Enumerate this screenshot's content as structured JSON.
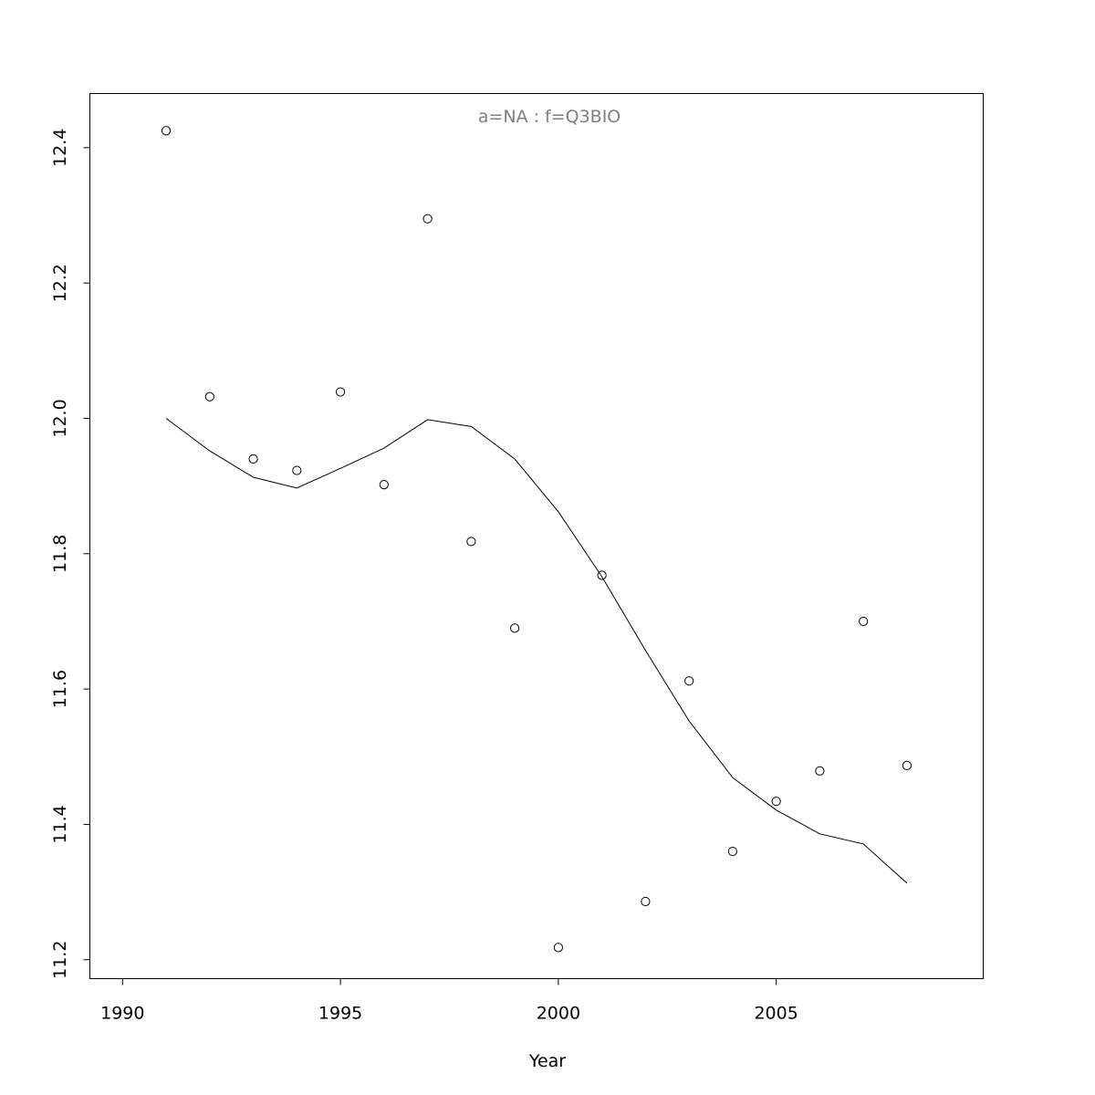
{
  "chart_data": {
    "type": "scatter",
    "title": "a=NA  :  f=Q3BIO",
    "xlabel": "Year",
    "ylabel": "",
    "xlim": [
      1989.25,
      2009.75
    ],
    "ylim": [
      11.172,
      12.48
    ],
    "x_ticks": [
      1990,
      1995,
      2000,
      2005
    ],
    "y_ticks": [
      11.2,
      11.4,
      11.6,
      11.8,
      12.0,
      12.2,
      12.4
    ],
    "x_tick_labels": [
      "1990",
      "1995",
      "2000",
      "2005"
    ],
    "y_tick_labels": [
      "11.2",
      "11.4",
      "11.6",
      "11.8",
      "12.0",
      "12.2",
      "12.4"
    ],
    "grid": false,
    "series": [
      {
        "mode": "points",
        "x": [
          1991,
          1992,
          1993,
          1994,
          1995,
          1996,
          1997,
          1998,
          1999,
          2000,
          2001,
          2002,
          2003,
          2004,
          2005,
          2006,
          2007,
          2008
        ],
        "y": [
          12.425,
          12.032,
          11.94,
          11.923,
          12.039,
          11.902,
          12.295,
          11.818,
          11.69,
          11.218,
          11.768,
          11.286,
          11.612,
          11.36,
          11.434,
          11.479,
          11.7,
          11.487
        ]
      },
      {
        "mode": "line",
        "x": [
          1991,
          1992,
          1993,
          1994,
          1995,
          1996,
          1997,
          1998,
          1999,
          2000,
          2001,
          2002,
          2003,
          2004,
          2005,
          2006,
          2007,
          2008
        ],
        "y": [
          12.0,
          11.952,
          11.913,
          11.897,
          11.926,
          11.956,
          11.998,
          11.988,
          11.94,
          11.862,
          11.766,
          11.657,
          11.553,
          11.469,
          11.421,
          11.386,
          11.371,
          11.313
        ]
      }
    ]
  }
}
